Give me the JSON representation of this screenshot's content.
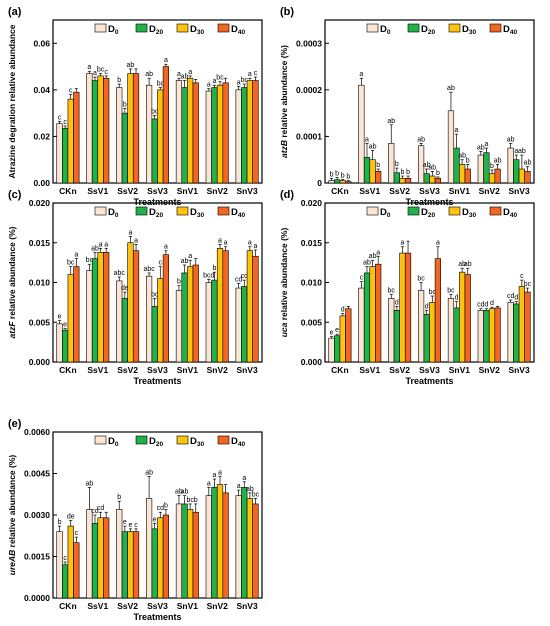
{
  "legend": [
    "D0",
    "D20",
    "D30",
    "D40"
  ],
  "colors": [
    "#fde5d4",
    "#1fb24a",
    "#ffc20e",
    "#f26522"
  ],
  "chart_data": [
    {
      "type": "bar",
      "panel": "(a)",
      "ylabel": "Atrazine degration relative abundance",
      "xlabel": "Treatments",
      "categories": [
        "CKn",
        "SsV1",
        "SsV2",
        "SsV3",
        "SnV1",
        "SnV2",
        "SnV3"
      ],
      "ylim": [
        0,
        0.07
      ],
      "yticks": [
        0.0,
        0.02,
        0.04,
        0.06
      ],
      "ytick_labels": [
        "0.00",
        "0.02",
        "0.04",
        "0.06"
      ],
      "series": [
        {
          "name": "D0",
          "values": [
            0.0255,
            0.047,
            0.041,
            0.042,
            0.044,
            0.0395,
            0.04
          ],
          "errors": [
            0.001,
            0.001,
            0.0015,
            0.003,
            0.001,
            0.001,
            0.0015
          ],
          "letters": [
            "c",
            "a",
            "b",
            "ab",
            "a",
            "a",
            "a"
          ]
        },
        {
          "name": "D20",
          "values": [
            0.0235,
            0.044,
            0.03,
            0.0275,
            0.041,
            0.041,
            0.041
          ],
          "errors": [
            0.001,
            0.0015,
            0.002,
            0.0015,
            0.003,
            0.001,
            0.0015
          ],
          "letters": [
            "c",
            "a",
            "b",
            "bc",
            "ab",
            "a",
            "bc"
          ]
        },
        {
          "name": "D30",
          "values": [
            0.036,
            0.046,
            0.047,
            0.04,
            0.045,
            0.042,
            0.044
          ],
          "errors": [
            0.002,
            0.001,
            0.002,
            0.001,
            0.001,
            0.0015,
            0.001
          ],
          "letters": [
            "c",
            "bc",
            "ab",
            "bc",
            "a",
            "bc",
            "a"
          ]
        },
        {
          "name": "D40",
          "values": [
            0.039,
            0.045,
            0.047,
            0.05,
            0.043,
            0.043,
            0.044
          ],
          "errors": [
            0.0015,
            0.001,
            0.002,
            0.001,
            0.0015,
            0.002,
            0.0015
          ],
          "letters": [
            "",
            "c",
            "",
            "a",
            "",
            "",
            "c"
          ]
        }
      ]
    },
    {
      "type": "bar",
      "panel": "(b)",
      "ylabel_italic": "atzB",
      "ylabel_rest": " relative abundance (%)",
      "xlabel": "Treatments",
      "categories": [
        "CKn",
        "SsV1",
        "SsV2",
        "SsV3",
        "SnV1",
        "SnV2",
        "SnV3"
      ],
      "ylim": [
        0,
        0.00035
      ],
      "yticks": [
        0,
        0.0001,
        0.0002,
        0.0003
      ],
      "ytick_labels": [
        "0",
        "0.0001",
        "0.0002",
        "0.0003"
      ],
      "series": [
        {
          "name": "D0",
          "values": [
            5e-06,
            0.00021,
            8.5e-05,
            8e-05,
            0.000155,
            6e-05,
            7.5e-05
          ],
          "errors": [
            5e-06,
            1.5e-05,
            4e-05,
            5e-06,
            4e-05,
            8e-06,
            1e-05
          ],
          "letters": [
            "b",
            "a",
            "ab",
            "ab",
            "ab",
            "ab",
            "ab"
          ]
        },
        {
          "name": "D20",
          "values": [
            7e-06,
            5.5e-05,
            2.2e-05,
            2e-05,
            7.5e-05,
            6.5e-05,
            5e-05
          ],
          "errors": [
            5e-06,
            3e-05,
            1e-05,
            1e-05,
            3e-05,
            1e-05,
            1e-05
          ],
          "letters": [
            "b",
            "a",
            "b",
            "ab",
            "a",
            "a",
            "a"
          ]
        },
        {
          "name": "D30",
          "values": [
            5e-06,
            5e-05,
            1e-05,
            1.5e-05,
            4e-05,
            2e-05,
            3e-05
          ],
          "errors": [
            3e-06,
            2e-05,
            5e-06,
            1e-05,
            1e-05,
            8e-06,
            3e-05
          ],
          "letters": [
            "b",
            "ab",
            "b",
            "ab",
            "ab",
            "b",
            "ab"
          ]
        },
        {
          "name": "D40",
          "values": [
            3e-06,
            2.5e-05,
            1e-05,
            1e-05,
            3e-05,
            3e-05,
            2.5e-05
          ],
          "errors": [
            2e-06,
            5e-06,
            5e-06,
            3e-06,
            1e-05,
            1e-05,
            1e-05
          ],
          "letters": [
            "b",
            "b",
            "b",
            "b",
            "b",
            "ab",
            "ab"
          ]
        }
      ]
    },
    {
      "type": "bar",
      "panel": "(c)",
      "ylabel_italic": "atzF",
      "ylabel_rest": " relative abundance (%)",
      "xlabel": "Treatments",
      "categories": [
        "CKn",
        "SsV1",
        "SsV2",
        "SsV3",
        "SnV1",
        "SnV2",
        "SnV3"
      ],
      "ylim": [
        0,
        0.02
      ],
      "yticks": [
        0,
        0.005,
        0.01,
        0.015,
        0.02
      ],
      "ytick_labels": [
        "0.000",
        "0.005",
        "0.010",
        "0.015",
        "0.020"
      ],
      "series": [
        {
          "name": "D0",
          "values": [
            0.0048,
            0.0115,
            0.0102,
            0.0108,
            0.009,
            0.01,
            0.0093
          ],
          "errors": [
            0.0004,
            0.0008,
            0.0005,
            0.0004,
            0.0006,
            0.0004,
            0.0006
          ],
          "letters": [
            "e",
            "bc",
            "abc",
            "abc",
            "b",
            "bcd",
            "cd"
          ]
        },
        {
          "name": "D20",
          "values": [
            0.004,
            0.013,
            0.008,
            0.007,
            0.0112,
            0.0103,
            0.0095
          ],
          "errors": [
            0.0002,
            0.0008,
            0.0008,
            0.001,
            0.001,
            0.001,
            0.0008
          ],
          "letters": [
            "e",
            "ab",
            "de",
            "bc",
            "ab",
            "b",
            "cd"
          ]
        },
        {
          "name": "D30",
          "values": [
            0.011,
            0.0138,
            0.015,
            0.0105,
            0.012,
            0.0143,
            0.014
          ],
          "errors": [
            0.001,
            0.0005,
            0.0008,
            0.0015,
            0.0008,
            0.0005,
            0.0005
          ],
          "letters": [
            "bc",
            "a",
            "a",
            "c",
            "a",
            "a",
            "a"
          ]
        },
        {
          "name": "D40",
          "values": [
            0.012,
            0.0138,
            0.014,
            0.0135,
            0.0122,
            0.014,
            0.0133
          ],
          "errors": [
            0.001,
            0.0005,
            0.0008,
            0.0005,
            0.0008,
            0.0005,
            0.0008
          ],
          "letters": [
            "a",
            "a",
            "a",
            "a",
            "",
            "a",
            "a"
          ]
        }
      ]
    },
    {
      "type": "bar",
      "panel": "(d)",
      "ylabel_italic": "uca",
      "ylabel_rest": " relative abundance (%)",
      "xlabel": "Treatments",
      "categories": [
        "CKn",
        "SsV1",
        "SsV2",
        "SsV3",
        "SnV1",
        "SnV2",
        "SnV3"
      ],
      "ylim": [
        0,
        0.02
      ],
      "yticks": [
        0,
        0.005,
        0.01,
        0.015,
        0.02
      ],
      "ytick_labels": [
        "0.000",
        "0.005",
        "0.010",
        "0.015",
        "0.020"
      ],
      "series": [
        {
          "name": "D0",
          "values": [
            0.003,
            0.0093,
            0.008,
            0.009,
            0.008,
            0.0065,
            0.0075
          ],
          "errors": [
            0.0002,
            0.0008,
            0.0005,
            0.001,
            0.0005,
            0.0002,
            0.0003
          ],
          "letters": [
            "e",
            "c",
            "bc",
            "bc",
            "bc",
            "cd",
            "cd"
          ]
        },
        {
          "name": "D20",
          "values": [
            0.0033,
            0.0112,
            0.0065,
            0.006,
            0.0068,
            0.0065,
            0.0073
          ],
          "errors": [
            0.0002,
            0.0008,
            0.0005,
            0.0005,
            0.0008,
            0.0002,
            0.0003
          ],
          "letters": [
            "e",
            "ab",
            "d",
            "d",
            "d",
            "d",
            "d"
          ]
        },
        {
          "name": "D30",
          "values": [
            0.0058,
            0.012,
            0.0137,
            0.0075,
            0.0113,
            0.0067,
            0.0095
          ],
          "errors": [
            0.0003,
            0.0008,
            0.0008,
            0.0008,
            0.0005,
            0.0002,
            0.0008
          ],
          "letters": [
            "d",
            "ab",
            "a",
            "bc",
            "ab",
            "d",
            "c"
          ]
        },
        {
          "name": "D40",
          "values": [
            0.0067,
            0.0123,
            0.0137,
            0.013,
            0.011,
            0.0068,
            0.0088
          ],
          "errors": [
            0.0003,
            0.001,
            0.0015,
            0.0015,
            0.0008,
            0.0002,
            0.0005
          ],
          "letters": [
            "",
            "a",
            "",
            "a",
            "ab",
            "",
            "bc"
          ]
        }
      ]
    },
    {
      "type": "bar",
      "panel": "(e)",
      "ylabel_italic": "ureAB",
      "ylabel_rest": " relative abundance (%)",
      "xlabel": "Treatments",
      "categories": [
        "CKn",
        "SsV1",
        "SsV2",
        "SsV3",
        "SnV1",
        "SnV2",
        "SnV3"
      ],
      "ylim": [
        0,
        0.006
      ],
      "yticks": [
        0,
        0.0015,
        0.003,
        0.0045,
        0.006
      ],
      "ytick_labels": [
        "0.0000",
        "0.0015",
        "0.0030",
        "0.0045",
        "0.0060"
      ],
      "series": [
        {
          "name": "D0",
          "values": [
            0.0024,
            0.0032,
            0.0032,
            0.0036,
            0.0034,
            0.0037,
            0.0037
          ],
          "errors": [
            0.0002,
            0.0008,
            0.0003,
            0.0008,
            0.0003,
            0.0003,
            0.0002
          ],
          "letters": [
            "b",
            "ab",
            "b",
            "ab",
            "ab",
            "a",
            "a"
          ]
        },
        {
          "name": "D20",
          "values": [
            0.0012,
            0.0027,
            0.0024,
            0.0025,
            0.0034,
            0.004,
            0.004
          ],
          "errors": [
            0.0001,
            0.0003,
            0.0002,
            0.0002,
            0.0003,
            0.0003,
            0.0002
          ],
          "letters": [
            "c",
            "cd",
            "e",
            "e",
            "ab",
            "a",
            "a"
          ]
        },
        {
          "name": "D30",
          "values": [
            0.0026,
            0.0029,
            0.0024,
            0.0029,
            0.0032,
            0.0041,
            0.0036
          ],
          "errors": [
            0.0002,
            0.0002,
            0.0001,
            0.0002,
            0.0002,
            0.0003,
            0.0002
          ],
          "letters": [
            "de",
            "cd",
            "e",
            "cd",
            "bc",
            "a",
            "ab"
          ]
        },
        {
          "name": "D40",
          "values": [
            0.002,
            0.0029,
            0.0024,
            0.003,
            0.0031,
            0.0038,
            0.0034
          ],
          "errors": [
            0.0002,
            0.0002,
            0.0001,
            0.0002,
            0.0003,
            0.0003,
            0.0002
          ],
          "letters": [
            "c",
            "",
            "c",
            "b",
            "b",
            "",
            "bc"
          ]
        }
      ]
    }
  ]
}
